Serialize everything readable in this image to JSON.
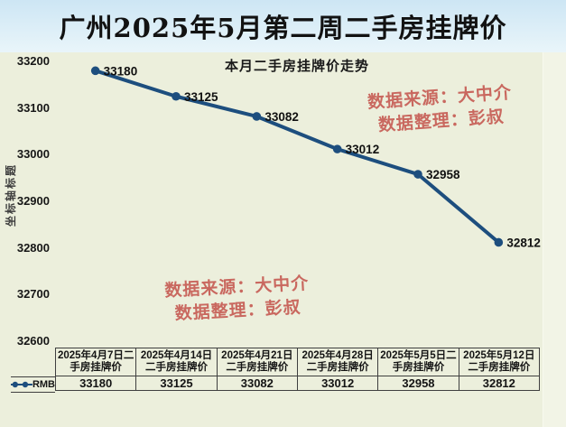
{
  "title": "广州2025年5月第二周二手房挂牌价",
  "chart_data": {
    "type": "line",
    "title": "本月二手房挂牌价走势",
    "yaxis_title": "坐标轴标题",
    "categories": [
      "2025年4月7日二手房挂牌价",
      "2025年4月14日二手房挂牌价",
      "2025年4月21日二手房挂牌价",
      "2025年4月28日二手房挂牌价",
      "2025年5月5日二手房挂牌价",
      "2025年5月12日二手房挂牌价"
    ],
    "series": [
      {
        "name": "RMB",
        "values": [
          33180,
          33125,
          33082,
          33012,
          32958,
          32812
        ]
      }
    ],
    "data_labels": [
      "33180",
      "33125",
      "33082",
      "33012",
      "32958",
      "32812"
    ],
    "ylim": [
      32600,
      33200
    ],
    "ytick_step": 100,
    "ytick_labels": [
      "33200",
      "33100",
      "33000",
      "32900",
      "32800",
      "32700",
      "32600"
    ],
    "grid": false,
    "legend_position": "bottom-table",
    "data_table_shown": true
  },
  "watermarks": [
    {
      "line1": "数据来源：大中介",
      "line2": "数据整理：彭叔"
    },
    {
      "line1": "数据来源：大中介",
      "line2": "数据整理：彭叔"
    }
  ],
  "colors": {
    "title_band": "#cde6f4",
    "chart_background": "#ecefdc",
    "line": "#1d4e7e",
    "marker": "#1d4e7e",
    "watermark_red": "#c65a52",
    "table_border": "#3f3f3f",
    "text": "#141414"
  }
}
